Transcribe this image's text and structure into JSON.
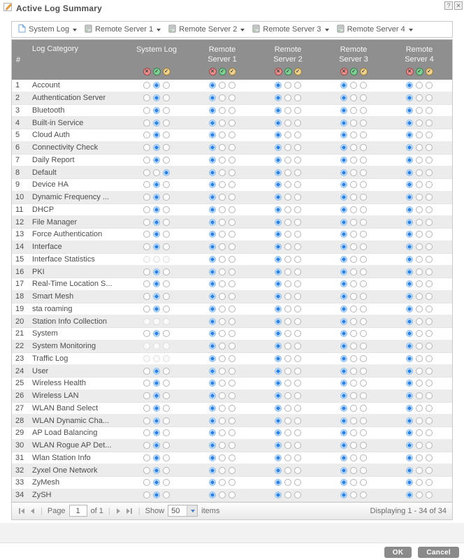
{
  "dialog": {
    "title": "Active Log Summary",
    "help_button": "?",
    "close_button": "✕"
  },
  "toolbar": {
    "items": [
      {
        "label": "System Log"
      },
      {
        "label": "Remote Server 1"
      },
      {
        "label": "Remote Server 2"
      },
      {
        "label": "Remote Server 3"
      },
      {
        "label": "Remote Server 4"
      }
    ]
  },
  "table": {
    "columns": {
      "num": "#",
      "category": "Log Category",
      "system_log": "System Log",
      "remote_servers": [
        {
          "line1": "Remote",
          "line2": "Server 1"
        },
        {
          "line1": "Remote",
          "line2": "Server 2"
        },
        {
          "line1": "Remote",
          "line2": "Server 3"
        },
        {
          "line1": "Remote",
          "line2": "Server 4"
        }
      ]
    },
    "legend_icons": [
      {
        "name": "disable-all-icon",
        "glyph": "✕",
        "color": "red"
      },
      {
        "name": "enable-all-icon",
        "glyph": "✓",
        "color": "green"
      },
      {
        "name": "debug-all-icon",
        "glyph": "✓",
        "color": "yellow"
      }
    ],
    "radio_options": [
      "disable",
      "enable",
      "debug"
    ],
    "rows": [
      {
        "num": 1,
        "category": "Account",
        "sl": 1,
        "r1": 0,
        "r2": 0,
        "r3": 0,
        "r4": 0
      },
      {
        "num": 2,
        "category": "Authentication Server",
        "sl": 1,
        "r1": 0,
        "r2": 0,
        "r3": 0,
        "r4": 0
      },
      {
        "num": 3,
        "category": "Bluetooth",
        "sl": 1,
        "r1": 0,
        "r2": 0,
        "r3": 0,
        "r4": 0
      },
      {
        "num": 4,
        "category": "Built-in Service",
        "sl": 1,
        "r1": 0,
        "r2": 0,
        "r3": 0,
        "r4": 0
      },
      {
        "num": 5,
        "category": "Cloud Auth",
        "sl": 1,
        "r1": 0,
        "r2": 0,
        "r3": 0,
        "r4": 0
      },
      {
        "num": 6,
        "category": "Connectivity Check",
        "sl": 1,
        "r1": 0,
        "r2": 0,
        "r3": 0,
        "r4": 0
      },
      {
        "num": 7,
        "category": "Daily Report",
        "sl": 1,
        "r1": 0,
        "r2": 0,
        "r3": 0,
        "r4": 0
      },
      {
        "num": 8,
        "category": "Default",
        "sl": 2,
        "r1": 0,
        "r2": 0,
        "r3": 0,
        "r4": 0
      },
      {
        "num": 9,
        "category": "Device HA",
        "sl": 1,
        "r1": 0,
        "r2": 0,
        "r3": 0,
        "r4": 0
      },
      {
        "num": 10,
        "category": "Dynamic Frequency ...",
        "sl": 1,
        "r1": 0,
        "r2": 0,
        "r3": 0,
        "r4": 0
      },
      {
        "num": 11,
        "category": "DHCP",
        "sl": 1,
        "r1": 0,
        "r2": 0,
        "r3": 0,
        "r4": 0
      },
      {
        "num": 12,
        "category": "File Manager",
        "sl": 1,
        "r1": 0,
        "r2": 0,
        "r3": 0,
        "r4": 0
      },
      {
        "num": 13,
        "category": "Force Authentication",
        "sl": 1,
        "r1": 0,
        "r2": 0,
        "r3": 0,
        "r4": 0
      },
      {
        "num": 14,
        "category": "Interface",
        "sl": 1,
        "r1": 0,
        "r2": 0,
        "r3": 0,
        "r4": 0
      },
      {
        "num": 15,
        "category": "Interface Statistics",
        "sl": null,
        "r1": 0,
        "r2": 0,
        "r3": 0,
        "r4": 0
      },
      {
        "num": 16,
        "category": "PKI",
        "sl": 1,
        "r1": 0,
        "r2": 0,
        "r3": 0,
        "r4": 0
      },
      {
        "num": 17,
        "category": "Real-Time Location S...",
        "sl": 1,
        "r1": 0,
        "r2": 0,
        "r3": 0,
        "r4": 0
      },
      {
        "num": 18,
        "category": "Smart Mesh",
        "sl": 1,
        "r1": 0,
        "r2": 0,
        "r3": 0,
        "r4": 0
      },
      {
        "num": 19,
        "category": "sta roaming",
        "sl": 1,
        "r1": 0,
        "r2": 0,
        "r3": 0,
        "r4": 0
      },
      {
        "num": 20,
        "category": "Station Info Collection",
        "sl": null,
        "r1": 0,
        "r2": 0,
        "r3": 0,
        "r4": 0
      },
      {
        "num": 21,
        "category": "System",
        "sl": 1,
        "r1": 0,
        "r2": 0,
        "r3": 0,
        "r4": 0
      },
      {
        "num": 22,
        "category": "System Monitoring",
        "sl": null,
        "r1": 0,
        "r2": 0,
        "r3": 0,
        "r4": 0
      },
      {
        "num": 23,
        "category": "Traffic Log",
        "sl": null,
        "r1": 0,
        "r2": 0,
        "r3": 0,
        "r4": 0
      },
      {
        "num": 24,
        "category": "User",
        "sl": 1,
        "r1": 0,
        "r2": 0,
        "r3": 0,
        "r4": 0
      },
      {
        "num": 25,
        "category": "Wireless Health",
        "sl": 1,
        "r1": 0,
        "r2": 0,
        "r3": 0,
        "r4": 0
      },
      {
        "num": 26,
        "category": "Wireless LAN",
        "sl": 1,
        "r1": 0,
        "r2": 0,
        "r3": 0,
        "r4": 0
      },
      {
        "num": 27,
        "category": "WLAN Band Select",
        "sl": 1,
        "r1": 0,
        "r2": 0,
        "r3": 0,
        "r4": 0
      },
      {
        "num": 28,
        "category": "WLAN Dynamic Cha...",
        "sl": 1,
        "r1": 0,
        "r2": 0,
        "r3": 0,
        "r4": 0
      },
      {
        "num": 29,
        "category": "AP Load Balancing",
        "sl": 1,
        "r1": 0,
        "r2": 0,
        "r3": 0,
        "r4": 0
      },
      {
        "num": 30,
        "category": "WLAN Rogue AP Det...",
        "sl": 1,
        "r1": 0,
        "r2": 0,
        "r3": 0,
        "r4": 0
      },
      {
        "num": 31,
        "category": "Wlan Station Info",
        "sl": 1,
        "r1": 0,
        "r2": 0,
        "r3": 0,
        "r4": 0
      },
      {
        "num": 32,
        "category": "Zyxel One Network",
        "sl": 1,
        "r1": 0,
        "r2": 0,
        "r3": 0,
        "r4": 0
      },
      {
        "num": 33,
        "category": "ZyMesh",
        "sl": 1,
        "r1": 0,
        "r2": 0,
        "r3": 0,
        "r4": 0
      },
      {
        "num": 34,
        "category": "ZySH",
        "sl": 1,
        "r1": 0,
        "r2": 0,
        "r3": 0,
        "r4": 0
      }
    ]
  },
  "pagination": {
    "page_label": "Page",
    "page_value": "1",
    "of_label": "of 1",
    "show_label": "Show",
    "show_value": "50",
    "items_label": "items",
    "status": "Displaying 1 - 34 of 34"
  },
  "footer": {
    "ok_label": "OK",
    "cancel_label": "Cancel"
  },
  "colors": {
    "header_bg": "#8f8f8f",
    "radio_selected": "#2a80e2",
    "row_alt_bg": "#ececec",
    "legend_red": "#e88f8f",
    "legend_green": "#7dcf93",
    "legend_yellow": "#ecd28e",
    "button_bg": "#8a8a8a"
  }
}
